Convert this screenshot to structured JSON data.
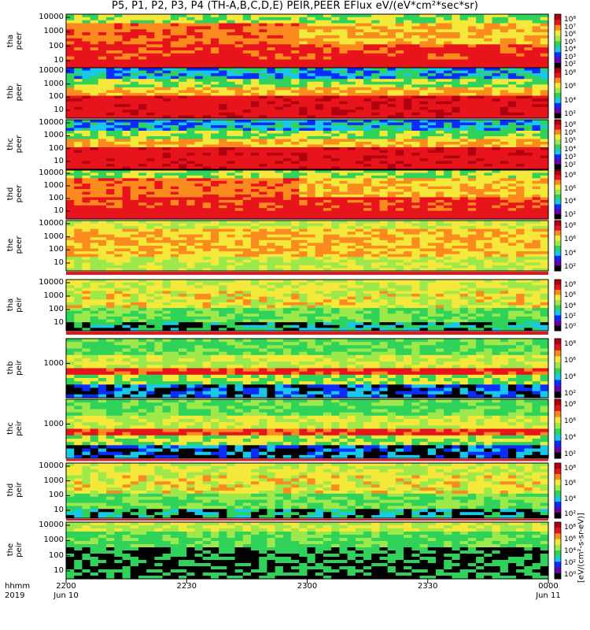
{
  "title": "P5, P1, P2, P3, P4 (TH-A,B,C,D,E) PEIR,PEER EFlux eV/(eV*cm²*sec*sr)",
  "colorbar_label": "[eV/(cm²-s-sr-eV)]",
  "chart_data": {
    "type": "heatmap",
    "x_ticks": [
      "2200",
      "2230",
      "2300",
      "2330",
      "0000"
    ],
    "x_date_labels": [
      "Jun 10",
      "",
      "",
      "",
      "Jun 11"
    ],
    "x_row_labels": [
      "hhmm",
      "2019"
    ],
    "panels": [
      {
        "name": "tha peer",
        "yticks": [
          "10000",
          "1000",
          "100",
          "10"
        ],
        "ylog": true,
        "colorbar_ticks": [
          "10⁸",
          "10⁷",
          "10⁶",
          "10⁵",
          "10⁴",
          "10³",
          "10²"
        ],
        "dominant": "orange-red"
      },
      {
        "name": "thb peer",
        "yticks": [
          "10000",
          "1000",
          "100",
          "10"
        ],
        "ylog": true,
        "colorbar_ticks": [
          "10⁸",
          "10⁶",
          "10⁴",
          "10²"
        ],
        "dominant": "red"
      },
      {
        "name": "thc peer",
        "yticks": [
          "10000",
          "1000",
          "100",
          "10"
        ],
        "ylog": true,
        "colorbar_ticks": [
          "10⁸",
          "10⁶",
          "10⁵",
          "10⁴",
          "10³",
          "10²"
        ],
        "dominant": "red"
      },
      {
        "name": "thd peer",
        "yticks": [
          "10000",
          "1000",
          "100",
          "10"
        ],
        "ylog": true,
        "colorbar_ticks": [
          "10⁸",
          "10⁶",
          "10⁴",
          "10²"
        ],
        "dominant": "orange-red"
      },
      {
        "name": "the peer",
        "yticks": [
          "10000",
          "1000",
          "100",
          "10"
        ],
        "ylog": true,
        "colorbar_ticks": [
          "10⁸",
          "10⁶",
          "10⁴",
          "10²"
        ],
        "dominant": "orange-yellow"
      },
      {
        "name": "tha peir",
        "yticks": [
          "10000",
          "1000",
          "100",
          "10"
        ],
        "ylog": true,
        "colorbar_ticks": [
          "10⁸",
          "10⁶",
          "10⁴",
          "10²",
          "10⁰"
        ],
        "dominant": "yellow-green"
      },
      {
        "name": "thb peir",
        "yticks": [
          "1000"
        ],
        "ylog": true,
        "colorbar_ticks": [
          "10⁸",
          "10⁶",
          "10⁴",
          "10²"
        ],
        "dominant": "green-red-band"
      },
      {
        "name": "thc peir",
        "yticks": [
          "1000"
        ],
        "ylog": true,
        "colorbar_ticks": [
          "10⁸",
          "10⁶",
          "10⁴",
          "10²"
        ],
        "dominant": "green-red-band"
      },
      {
        "name": "thd peir",
        "yticks": [
          "10000",
          "1000",
          "100",
          "10"
        ],
        "ylog": true,
        "colorbar_ticks": [
          "10⁸",
          "10⁶",
          "10⁴",
          "10²"
        ],
        "dominant": "yellow-green"
      },
      {
        "name": "the peir",
        "yticks": [
          "10000",
          "1000",
          "100",
          "10"
        ],
        "ylog": true,
        "colorbar_ticks": [
          "10⁸",
          "10⁶",
          "10⁴",
          "10²",
          "10⁰"
        ],
        "dominant": "green-black"
      }
    ],
    "colors": {
      "black": "#000000",
      "purple": "#6a00a8",
      "blue": "#0a2cff",
      "cyan": "#19c8e8",
      "green": "#2fd35a",
      "lightgreen": "#9de84a",
      "yellow": "#f4e83a",
      "orange": "#fb8b1e",
      "red": "#e8141c",
      "darkred": "#b00010"
    }
  }
}
